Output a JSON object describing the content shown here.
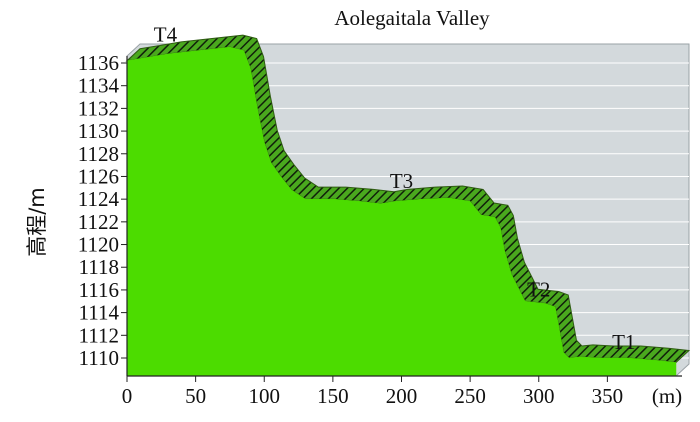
{
  "chart_data": {
    "type": "area",
    "title": "Aolegaitala Valley",
    "ylabel": "高程/m",
    "x_unit_label": "(m)",
    "xlim": [
      0,
      400
    ],
    "ylim": [
      1109,
      1137
    ],
    "x_ticks": [
      0,
      50,
      100,
      150,
      200,
      250,
      300,
      350
    ],
    "y_ticks": [
      1110,
      1112,
      1114,
      1116,
      1118,
      1120,
      1122,
      1124,
      1126,
      1128,
      1130,
      1132,
      1134,
      1136
    ],
    "grid": "horizontal",
    "colors": {
      "fill": "#4cdc00",
      "ridge": "#2f5c12",
      "plot_bg": "#d3d9dc",
      "grid": "#ffffff"
    },
    "series": [
      {
        "values": [
          [
            0,
            1136.2
          ],
          [
            15,
            1136.5
          ],
          [
            30,
            1136.8
          ],
          [
            45,
            1137.0
          ],
          [
            60,
            1137.2
          ],
          [
            75,
            1137.4
          ],
          [
            85,
            1137.1
          ],
          [
            90,
            1135.5
          ],
          [
            95,
            1132.0
          ],
          [
            100,
            1129.0
          ],
          [
            105,
            1127.2
          ],
          [
            112,
            1126.0
          ],
          [
            120,
            1124.8
          ],
          [
            130,
            1124.0
          ],
          [
            150,
            1124.0
          ],
          [
            170,
            1123.8
          ],
          [
            185,
            1123.6
          ],
          [
            195,
            1123.8
          ],
          [
            215,
            1124.0
          ],
          [
            235,
            1124.1
          ],
          [
            250,
            1123.8
          ],
          [
            258,
            1122.6
          ],
          [
            268,
            1122.4
          ],
          [
            272,
            1121.5
          ],
          [
            275,
            1119.5
          ],
          [
            280,
            1117.4
          ],
          [
            285,
            1116.2
          ],
          [
            290,
            1115.0
          ],
          [
            305,
            1114.8
          ],
          [
            312,
            1114.5
          ],
          [
            315,
            1112.5
          ],
          [
            318,
            1110.5
          ],
          [
            322,
            1110.0
          ],
          [
            330,
            1110.1
          ],
          [
            345,
            1110.0
          ],
          [
            365,
            1110.0
          ],
          [
            385,
            1109.8
          ],
          [
            400,
            1109.6
          ]
        ]
      }
    ],
    "annotations": [
      {
        "text": "T4",
        "x": 28,
        "y": 1137.9
      },
      {
        "text": "T3",
        "x": 200,
        "y": 1125.0
      },
      {
        "text": "T2",
        "x": 300,
        "y": 1115.4
      },
      {
        "text": "T1",
        "x": 362,
        "y": 1110.8
      }
    ]
  }
}
